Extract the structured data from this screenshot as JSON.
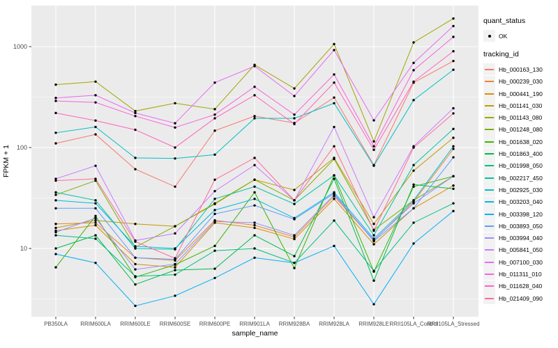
{
  "figure": {
    "y_axis_title": "FPKM + 1",
    "x_axis_title": "sample_name",
    "panel_color": "#EBEBEB",
    "grid_color": "#FFFFFF",
    "tick_label_color": "#4D4D4D",
    "point_color": "#000000"
  },
  "legend": {
    "quant_status_title": "quant_status",
    "quant_status_items": [
      {
        "label": "OK",
        "marker": "black-point"
      }
    ],
    "tracking_id_title": "tracking_id"
  },
  "chart_data": {
    "type": "line",
    "x_type": "categorical",
    "y_scale": "log10",
    "xlabel": "sample_name",
    "ylabel": "FPKM + 1",
    "y_ticks": [
      10,
      100,
      1000
    ],
    "y_minor_ticks": [
      3.162,
      31.62,
      316.2
    ],
    "ylim_px_anchor": "v=10 at y357, one decade = 145px",
    "grid": true,
    "legend_position": "right",
    "point_marker": {
      "shape": "circle",
      "color": "#000000"
    },
    "categories": [
      "PB350LA",
      "RRIM600LA",
      "RRIM600LE",
      "RRIM600SE",
      "RRIM600PE",
      "RRIM901LA",
      "RRIM928BA",
      "RRIM928LA",
      "RRIM928LE",
      "RRII105LA_Control",
      "RRII105LA_Stressed"
    ],
    "series": [
      {
        "name": "Hb_000163_130",
        "color": "#F8766D",
        "values": [
          110,
          135,
          61,
          41,
          147,
          205,
          175,
          313,
          67,
          440,
          720
        ]
      },
      {
        "name": "Hb_000239_030",
        "color": "#EA8331",
        "values": [
          17.5,
          18,
          8.1,
          7.6,
          19,
          17,
          13,
          33,
          12,
          29,
          97
        ]
      },
      {
        "name": "Hb_000441_190",
        "color": "#D89000",
        "values": [
          15,
          17,
          7,
          6.5,
          18,
          16,
          12.4,
          31,
          11,
          25,
          42
        ]
      },
      {
        "name": "Hb_001141_030",
        "color": "#C09B00",
        "values": [
          16,
          19,
          17.5,
          16.6,
          28,
          48,
          38,
          79,
          17.5,
          59,
          125
        ]
      },
      {
        "name": "Hb_001143_080",
        "color": "#A3A500",
        "values": [
          420,
          450,
          230,
          275,
          240,
          660,
          385,
          1060,
          115,
          1100,
          1900
        ]
      },
      {
        "name": "Hb_001248_080",
        "color": "#7CAE00",
        "values": [
          34,
          47,
          10.3,
          16.6,
          27.6,
          48,
          30,
          77,
          15.3,
          30,
          52
        ]
      },
      {
        "name": "Hb_001638_020",
        "color": "#39B600",
        "values": [
          6.5,
          21,
          5.2,
          6.9,
          10.6,
          36,
          6.4,
          53,
          5.9,
          41,
          52
        ]
      },
      {
        "name": "Hb_001863_400",
        "color": "#00BB4E",
        "values": [
          10,
          13.5,
          4.4,
          6.1,
          6.3,
          13.5,
          8.4,
          49,
          4.8,
          43,
          39
        ]
      },
      {
        "name": "Hb_001998_050",
        "color": "#00BF7D",
        "values": [
          13.5,
          12.5,
          5.3,
          5.5,
          9.5,
          10,
          7.2,
          18.9,
          6,
          18,
          28
        ]
      },
      {
        "name": "Hb_002217_450",
        "color": "#00C1A3",
        "values": [
          36,
          30,
          10,
          9.8,
          31,
          41,
          27.6,
          53,
          13.5,
          67,
          153
        ]
      },
      {
        "name": "Hb_002925_030",
        "color": "#00BFC4",
        "values": [
          140,
          160,
          79,
          78,
          85,
          195,
          195,
          275,
          66,
          295,
          590
        ]
      },
      {
        "name": "Hb_003203_040",
        "color": "#00BAE0",
        "values": [
          30,
          28,
          10.5,
          10,
          24,
          31,
          20,
          36,
          12.5,
          30,
          103
        ]
      },
      {
        "name": "Hb_003398_120",
        "color": "#00B0F6",
        "values": [
          8.8,
          7.2,
          2.7,
          3.4,
          5.1,
          8.1,
          7.2,
          10.6,
          2.8,
          11.2,
          23.5
        ]
      },
      {
        "name": "Hb_003893_050",
        "color": "#619CFF",
        "values": [
          25,
          25,
          8.1,
          7.8,
          22,
          26.7,
          19.5,
          35,
          11.8,
          25,
          80
        ]
      },
      {
        "name": "Hb_003994_040",
        "color": "#9590FF",
        "values": [
          14.5,
          20,
          6.2,
          7,
          18.5,
          18,
          13.5,
          34,
          12.1,
          28,
          52
        ]
      },
      {
        "name": "Hb_005841_050",
        "color": "#C77CFF",
        "values": [
          49,
          66,
          12,
          14.1,
          37,
          67,
          30,
          160,
          20.4,
          103,
          245
        ]
      },
      {
        "name": "Hb_007100_030",
        "color": "#E76BF3",
        "values": [
          310,
          330,
          220,
          174,
          440,
          640,
          324,
          925,
          186,
          690,
          1600
        ]
      },
      {
        "name": "Hb_011311_010",
        "color": "#FA62DB",
        "values": [
          290,
          280,
          205,
          158,
          212,
          400,
          212,
          530,
          103,
          584,
          1250
        ]
      },
      {
        "name": "Hb_011628_040",
        "color": "#FF62BC",
        "values": [
          220,
          185,
          150,
          100,
          195,
          330,
          171,
          440,
          95,
          450,
          900
        ]
      },
      {
        "name": "Hb_021409_090",
        "color": "#FF6A98",
        "values": [
          47,
          49,
          11.7,
          8,
          48,
          79,
          30,
          103,
          15,
          100,
          218
        ]
      }
    ]
  }
}
